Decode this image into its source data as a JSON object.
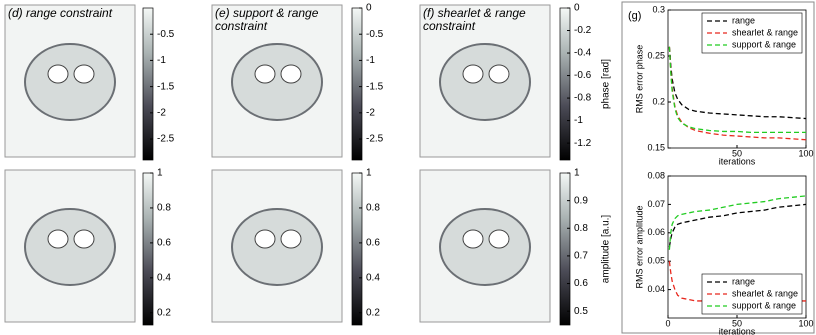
{
  "chart_data": [
    {
      "type": "colorbar",
      "title": "(d) range constraint",
      "ylim": [
        -2.9,
        0
      ],
      "yticks": [
        -0.5,
        -1,
        -1.5,
        -2,
        -2.5
      ]
    },
    {
      "type": "colorbar",
      "title": "(e) support & range constraint",
      "ylim": [
        -2.9,
        0
      ],
      "yticks": [
        0,
        -0.5,
        -1,
        -1.5,
        -2,
        -2.5
      ]
    },
    {
      "type": "colorbar",
      "title": "(f) shearlet & range constraint",
      "ylabel": "phase [rad]",
      "ylim": [
        -1.35,
        0
      ],
      "yticks": [
        0,
        -0.2,
        -0.4,
        -0.6,
        -0.8,
        -1,
        -1.2
      ]
    },
    {
      "type": "colorbar",
      "ylim": [
        0.13,
        1
      ],
      "yticks": [
        1,
        0.8,
        0.6,
        0.4,
        0.2
      ]
    },
    {
      "type": "colorbar",
      "ylim": [
        0.13,
        1
      ],
      "yticks": [
        1,
        0.8,
        0.6,
        0.4,
        0.2
      ]
    },
    {
      "type": "colorbar",
      "ylabel": "amplitude [a.u.]",
      "ylim": [
        0.45,
        1
      ],
      "yticks": [
        1,
        0.9,
        0.8,
        0.7,
        0.6,
        0.5
      ]
    },
    {
      "type": "line",
      "title": "(g)",
      "xlabel": "iterations",
      "ylabel": "RMS error phase",
      "x": [
        1,
        2,
        3,
        5,
        7,
        10,
        15,
        20,
        30,
        40,
        50,
        60,
        70,
        80,
        90,
        100
      ],
      "xlim": [
        0,
        100
      ],
      "xticks": [
        50,
        100
      ],
      "ylim": [
        0.15,
        0.3
      ],
      "yticks": [
        0.15,
        0.2,
        0.25,
        0.3
      ],
      "legend": "top-right",
      "series": [
        {
          "name": "range",
          "color": "#000000",
          "values": [
            0.26,
            0.24,
            0.225,
            0.21,
            0.203,
            0.197,
            0.192,
            0.19,
            0.188,
            0.187,
            0.186,
            0.185,
            0.184,
            0.184,
            0.183,
            0.182
          ]
        },
        {
          "name": "shearlet & range",
          "color": "#e8281e",
          "values": [
            0.26,
            0.235,
            0.215,
            0.195,
            0.185,
            0.178,
            0.172,
            0.169,
            0.166,
            0.164,
            0.163,
            0.162,
            0.161,
            0.161,
            0.16,
            0.159
          ]
        },
        {
          "name": "support & range",
          "color": "#22cc22",
          "values": [
            0.26,
            0.232,
            0.212,
            0.193,
            0.183,
            0.177,
            0.173,
            0.171,
            0.169,
            0.168,
            0.168,
            0.167,
            0.167,
            0.167,
            0.167,
            0.167
          ]
        }
      ]
    },
    {
      "type": "line",
      "xlabel": "iterations",
      "ylabel": "RMS error amplitude",
      "x": [
        1,
        2,
        3,
        5,
        7,
        10,
        15,
        20,
        30,
        40,
        50,
        60,
        70,
        80,
        90,
        100
      ],
      "xlim": [
        0,
        100
      ],
      "xticks": [
        0,
        50,
        100
      ],
      "ylim": [
        0.03,
        0.08
      ],
      "yticks": [
        0.04,
        0.05,
        0.06,
        0.07,
        0.08
      ],
      "legend": "bottom-right",
      "series": [
        {
          "name": "range",
          "color": "#000000",
          "values": [
            0.055,
            0.058,
            0.06,
            0.062,
            0.063,
            0.0635,
            0.064,
            0.0645,
            0.0655,
            0.066,
            0.067,
            0.0675,
            0.068,
            0.069,
            0.0695,
            0.07
          ]
        },
        {
          "name": "shearlet & range",
          "color": "#e8281e",
          "values": [
            0.05,
            0.046,
            0.043,
            0.04,
            0.038,
            0.037,
            0.0365,
            0.036,
            0.036,
            0.036,
            0.036,
            0.036,
            0.036,
            0.036,
            0.036,
            0.036
          ]
        },
        {
          "name": "support & range",
          "color": "#22cc22",
          "values": [
            0.054,
            0.06,
            0.063,
            0.065,
            0.066,
            0.0665,
            0.067,
            0.0675,
            0.068,
            0.069,
            0.07,
            0.0705,
            0.071,
            0.072,
            0.0725,
            0.073
          ]
        }
      ]
    }
  ]
}
